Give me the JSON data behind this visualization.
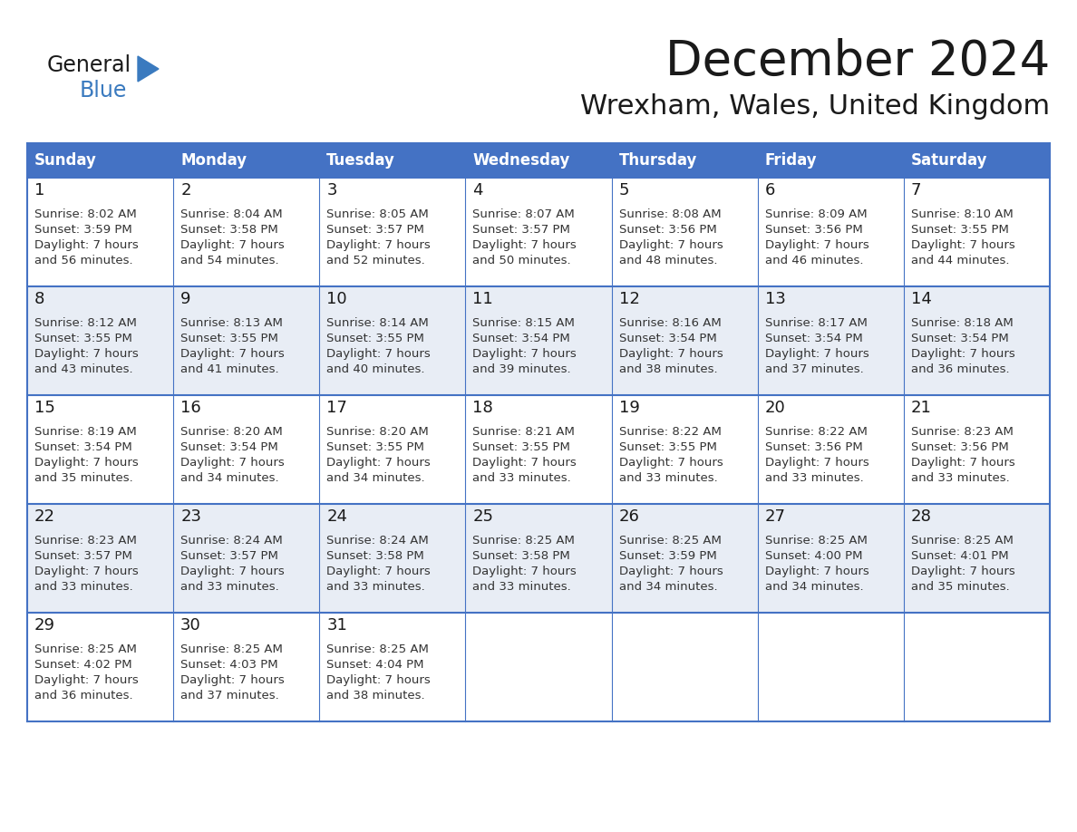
{
  "title": "December 2024",
  "subtitle": "Wrexham, Wales, United Kingdom",
  "header_bg_color": "#4472C4",
  "header_text_color": "#FFFFFF",
  "cell_bg_color_odd": "#FFFFFF",
  "cell_bg_color_even": "#E8EDF5",
  "border_color": "#4472C4",
  "day_headers": [
    "Sunday",
    "Monday",
    "Tuesday",
    "Wednesday",
    "Thursday",
    "Friday",
    "Saturday"
  ],
  "title_color": "#1a1a1a",
  "subtitle_color": "#1a1a1a",
  "cell_text_color": "#333333",
  "day_num_color": "#1a1a1a",
  "logo_general_color": "#1a1a1a",
  "logo_blue_color": "#3a7abf",
  "weeks": [
    [
      {
        "day": 1,
        "sunrise": "8:02 AM",
        "sunset": "3:59 PM",
        "daylight_hours": 7,
        "daylight_minutes": 56
      },
      {
        "day": 2,
        "sunrise": "8:04 AM",
        "sunset": "3:58 PM",
        "daylight_hours": 7,
        "daylight_minutes": 54
      },
      {
        "day": 3,
        "sunrise": "8:05 AM",
        "sunset": "3:57 PM",
        "daylight_hours": 7,
        "daylight_minutes": 52
      },
      {
        "day": 4,
        "sunrise": "8:07 AM",
        "sunset": "3:57 PM",
        "daylight_hours": 7,
        "daylight_minutes": 50
      },
      {
        "day": 5,
        "sunrise": "8:08 AM",
        "sunset": "3:56 PM",
        "daylight_hours": 7,
        "daylight_minutes": 48
      },
      {
        "day": 6,
        "sunrise": "8:09 AM",
        "sunset": "3:56 PM",
        "daylight_hours": 7,
        "daylight_minutes": 46
      },
      {
        "day": 7,
        "sunrise": "8:10 AM",
        "sunset": "3:55 PM",
        "daylight_hours": 7,
        "daylight_minutes": 44
      }
    ],
    [
      {
        "day": 8,
        "sunrise": "8:12 AM",
        "sunset": "3:55 PM",
        "daylight_hours": 7,
        "daylight_minutes": 43
      },
      {
        "day": 9,
        "sunrise": "8:13 AM",
        "sunset": "3:55 PM",
        "daylight_hours": 7,
        "daylight_minutes": 41
      },
      {
        "day": 10,
        "sunrise": "8:14 AM",
        "sunset": "3:55 PM",
        "daylight_hours": 7,
        "daylight_minutes": 40
      },
      {
        "day": 11,
        "sunrise": "8:15 AM",
        "sunset": "3:54 PM",
        "daylight_hours": 7,
        "daylight_minutes": 39
      },
      {
        "day": 12,
        "sunrise": "8:16 AM",
        "sunset": "3:54 PM",
        "daylight_hours": 7,
        "daylight_minutes": 38
      },
      {
        "day": 13,
        "sunrise": "8:17 AM",
        "sunset": "3:54 PM",
        "daylight_hours": 7,
        "daylight_minutes": 37
      },
      {
        "day": 14,
        "sunrise": "8:18 AM",
        "sunset": "3:54 PM",
        "daylight_hours": 7,
        "daylight_minutes": 36
      }
    ],
    [
      {
        "day": 15,
        "sunrise": "8:19 AM",
        "sunset": "3:54 PM",
        "daylight_hours": 7,
        "daylight_minutes": 35
      },
      {
        "day": 16,
        "sunrise": "8:20 AM",
        "sunset": "3:54 PM",
        "daylight_hours": 7,
        "daylight_minutes": 34
      },
      {
        "day": 17,
        "sunrise": "8:20 AM",
        "sunset": "3:55 PM",
        "daylight_hours": 7,
        "daylight_minutes": 34
      },
      {
        "day": 18,
        "sunrise": "8:21 AM",
        "sunset": "3:55 PM",
        "daylight_hours": 7,
        "daylight_minutes": 33
      },
      {
        "day": 19,
        "sunrise": "8:22 AM",
        "sunset": "3:55 PM",
        "daylight_hours": 7,
        "daylight_minutes": 33
      },
      {
        "day": 20,
        "sunrise": "8:22 AM",
        "sunset": "3:56 PM",
        "daylight_hours": 7,
        "daylight_minutes": 33
      },
      {
        "day": 21,
        "sunrise": "8:23 AM",
        "sunset": "3:56 PM",
        "daylight_hours": 7,
        "daylight_minutes": 33
      }
    ],
    [
      {
        "day": 22,
        "sunrise": "8:23 AM",
        "sunset": "3:57 PM",
        "daylight_hours": 7,
        "daylight_minutes": 33
      },
      {
        "day": 23,
        "sunrise": "8:24 AM",
        "sunset": "3:57 PM",
        "daylight_hours": 7,
        "daylight_minutes": 33
      },
      {
        "day": 24,
        "sunrise": "8:24 AM",
        "sunset": "3:58 PM",
        "daylight_hours": 7,
        "daylight_minutes": 33
      },
      {
        "day": 25,
        "sunrise": "8:25 AM",
        "sunset": "3:58 PM",
        "daylight_hours": 7,
        "daylight_minutes": 33
      },
      {
        "day": 26,
        "sunrise": "8:25 AM",
        "sunset": "3:59 PM",
        "daylight_hours": 7,
        "daylight_minutes": 34
      },
      {
        "day": 27,
        "sunrise": "8:25 AM",
        "sunset": "4:00 PM",
        "daylight_hours": 7,
        "daylight_minutes": 34
      },
      {
        "day": 28,
        "sunrise": "8:25 AM",
        "sunset": "4:01 PM",
        "daylight_hours": 7,
        "daylight_minutes": 35
      }
    ],
    [
      {
        "day": 29,
        "sunrise": "8:25 AM",
        "sunset": "4:02 PM",
        "daylight_hours": 7,
        "daylight_minutes": 36
      },
      {
        "day": 30,
        "sunrise": "8:25 AM",
        "sunset": "4:03 PM",
        "daylight_hours": 7,
        "daylight_minutes": 37
      },
      {
        "day": 31,
        "sunrise": "8:25 AM",
        "sunset": "4:04 PM",
        "daylight_hours": 7,
        "daylight_minutes": 38
      },
      null,
      null,
      null,
      null
    ]
  ]
}
